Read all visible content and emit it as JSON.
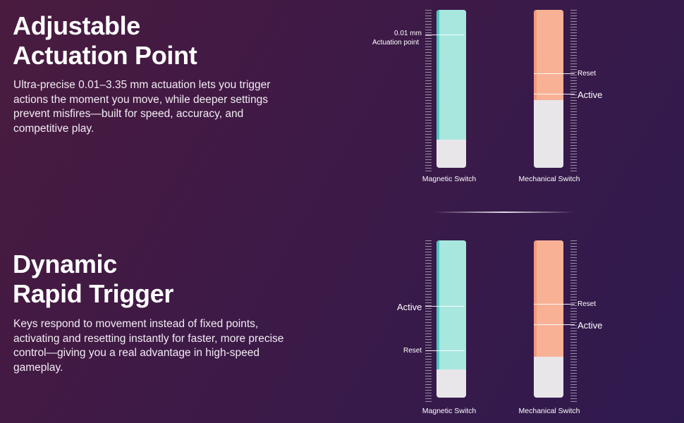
{
  "section1": {
    "title_line1": "Adjustable",
    "title_line2": "Actuation Point",
    "description": "Ultra-precise 0.01–3.35 mm actuation lets you trigger actions the moment you move, while deeper settings prevent misfires—built for speed, accuracy, and competitive play.",
    "magnetic": {
      "caption": "Magnetic Switch",
      "marker_value": "0.01 mm",
      "marker_label": "Actuation point",
      "fill_fraction": 0.82
    },
    "mechanical": {
      "caption": "Mechanical Switch",
      "reset_label": "Reset",
      "active_label": "Active",
      "fill_fraction": 0.57
    }
  },
  "section2": {
    "title_line1": "Dynamic",
    "title_line2": "Rapid Trigger",
    "description": "Keys respond to movement instead of fixed points, activating and resetting instantly for faster, more precise control—giving you a real advantage in high-speed gameplay.",
    "magnetic": {
      "caption": "Magnetic Switch",
      "active_label": "Active",
      "reset_label": "Reset",
      "fill_fraction": 0.82
    },
    "mechanical": {
      "caption": "Mechanical Switch",
      "reset_label": "Reset",
      "active_label": "Active",
      "fill_fraction": 0.74
    }
  },
  "colors": {
    "background_start": "#4a1b3f",
    "background_end": "#2f1a4f",
    "magnetic_fill": "#a7e7de",
    "mechanical_fill": "#f8b195",
    "empty_track": "#e8e6e9"
  }
}
